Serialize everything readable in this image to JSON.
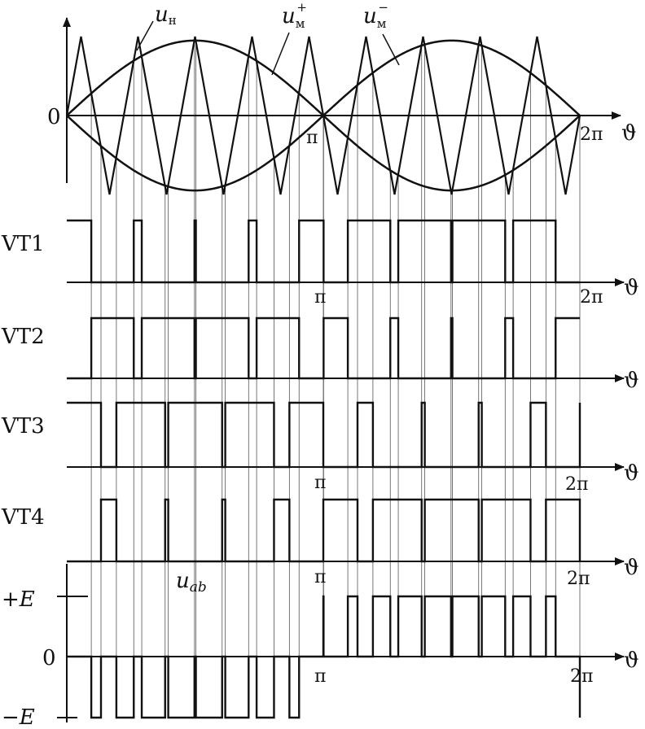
{
  "top_panel": {
    "zero_label": "0",
    "axis_symbol": "ϑ",
    "pi_label": "π",
    "two_pi_label": "2π",
    "curve_labels": {
      "carrier": "u",
      "carrier_sub": "н",
      "mod_plus": "u",
      "mod_plus_sub": "м",
      "mod_plus_sup": "+",
      "mod_minus": "u",
      "mod_minus_sub": "м",
      "mod_minus_sup": "−"
    }
  },
  "switch_panels": [
    {
      "label": "VT1",
      "axis_symbol": "ϑ",
      "pi_label": "π",
      "two_pi_label": "2π"
    },
    {
      "label": "VT2",
      "axis_symbol": "ϑ"
    },
    {
      "label": "VT3",
      "axis_symbol": "ϑ",
      "pi_label": "π",
      "two_pi_label": "2π"
    },
    {
      "label": "VT4",
      "axis_symbol": "ϑ",
      "pi_label": "π",
      "two_pi_label": "2π"
    }
  ],
  "output_panel": {
    "signal_label": "u",
    "signal_sub": "ab",
    "plus_e_label": "+E",
    "zero_label": "0",
    "minus_e_label": "−E",
    "axis_symbol": "ϑ",
    "pi_label": "π",
    "two_pi_label": "2π"
  },
  "chart_data": {
    "type": "line",
    "x_domain": [
      0,
      6.2832
    ],
    "carrier_periods": 9,
    "modulation_amplitude": 0.95,
    "carrier_amplitude": 1.0,
    "series": [
      {
        "name": "uн",
        "shape": "triangle",
        "period_fraction_of_2pi": 0.1111
      },
      {
        "name": "uм+",
        "shape": "sine",
        "amplitude": 0.95
      },
      {
        "name": "uм−",
        "shape": "sine",
        "amplitude": -0.95
      }
    ],
    "switch_states": [
      "VT1",
      "VT2",
      "VT3",
      "VT4"
    ],
    "output": {
      "name": "uab",
      "levels": [
        1,
        0,
        -1
      ]
    }
  }
}
